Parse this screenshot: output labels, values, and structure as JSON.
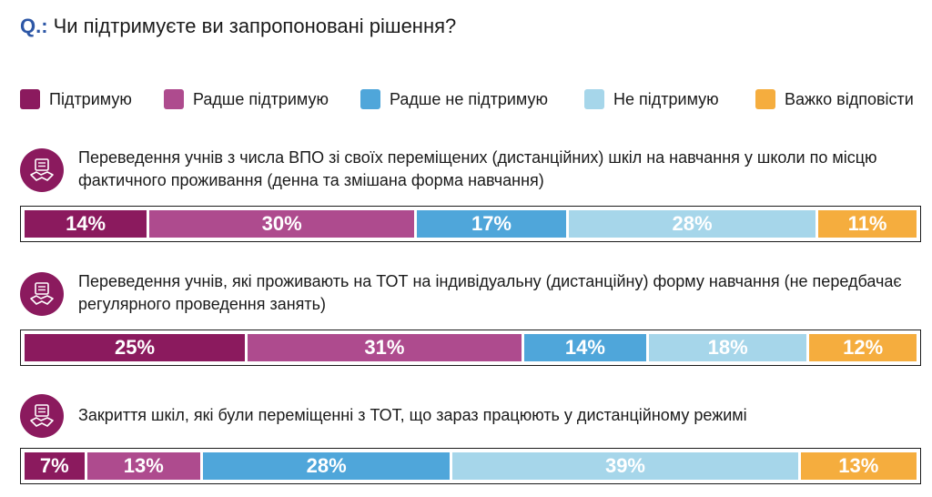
{
  "question": {
    "prefix": "Q.:",
    "text": "Чи підтримуєте ви запропоновані рішення?"
  },
  "legend": [
    {
      "label": "Підтримую",
      "color": "#8b1a5e"
    },
    {
      "label": "Радше підтримую",
      "color": "#ae4b8e"
    },
    {
      "label": "Радше не підтримую",
      "color": "#4fa6da"
    },
    {
      "label": "Не підтримую",
      "color": "#a6d6ea"
    },
    {
      "label": "Важко відповісти",
      "color": "#f5ad3e"
    }
  ],
  "chart_data": {
    "type": "bar",
    "stacked": true,
    "orientation": "horizontal",
    "unit": "%",
    "categories": [
      "Переведення учнів з числа ВПО зі своїх переміщених (дистанційних) шкіл на навчання у школи по місцю фактичного проживання (денна та змішана форма навчання)",
      "Переведення учнів, які проживають на ТОТ на індивідуальну (дистанційну) форму навчання (не передбачає регулярного проведення занять)",
      "Закриття шкіл, які були переміщенні з ТОТ, що зараз працюють у дистанційному режимі"
    ],
    "series": [
      {
        "name": "Підтримую",
        "color": "#8b1a5e",
        "values": [
          14,
          25,
          7
        ]
      },
      {
        "name": "Радше підтримую",
        "color": "#ae4b8e",
        "values": [
          30,
          31,
          13
        ]
      },
      {
        "name": "Радше не підтримую",
        "color": "#4fa6da",
        "values": [
          17,
          14,
          28
        ]
      },
      {
        "name": "Не підтримую",
        "color": "#a6d6ea",
        "values": [
          28,
          18,
          39
        ]
      },
      {
        "name": "Важко відповісти",
        "color": "#f5ad3e",
        "values": [
          11,
          12,
          13
        ]
      }
    ],
    "data_labels": [
      [
        "14%",
        "30%",
        "17%",
        "28%",
        "11%"
      ],
      [
        "25%",
        "31%",
        "14%",
        "18%",
        "12%"
      ],
      [
        "7%",
        "13%",
        "28%",
        "39%",
        "13%"
      ]
    ]
  }
}
